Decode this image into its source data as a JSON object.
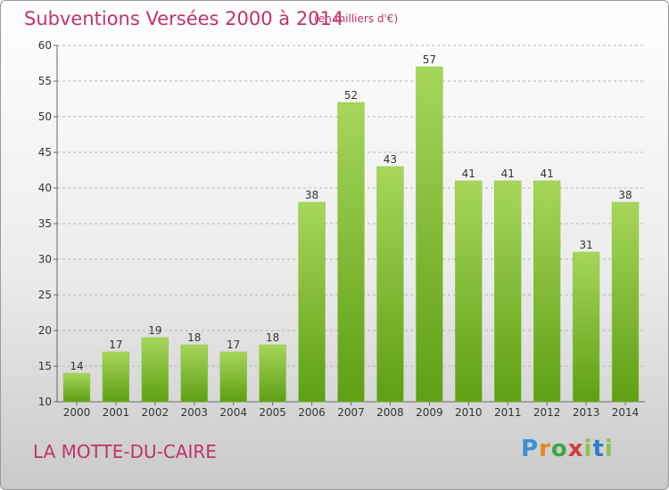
{
  "header": {
    "title": "Subventions Versées 2000 à 2014",
    "subtitle": "(en milliers d'€)"
  },
  "footer": {
    "commune": "LA MOTTE-DU-CAIRE",
    "logo_text": "Proxiti"
  },
  "colors": {
    "title": "#c0336b",
    "bar_top": "#a6d65a",
    "bar_bottom": "#5e9f14",
    "grid": "#b5b5b5"
  },
  "chart_data": {
    "type": "bar",
    "title": "Subventions Versées 2000 à 2014",
    "subtitle": "(en milliers d'€)",
    "xlabel": "",
    "ylabel": "",
    "categories": [
      "2000",
      "2001",
      "2002",
      "2003",
      "2004",
      "2005",
      "2006",
      "2007",
      "2008",
      "2009",
      "2010",
      "2011",
      "2012",
      "2013",
      "2014"
    ],
    "values": [
      14,
      17,
      19,
      18,
      17,
      18,
      38,
      52,
      43,
      57,
      41,
      41,
      41,
      31,
      38
    ],
    "ylim": [
      10,
      60
    ],
    "yticks": [
      10,
      15,
      20,
      25,
      30,
      35,
      40,
      45,
      50,
      55,
      60
    ],
    "grid": "horizontal-dashed",
    "legend": "none"
  }
}
